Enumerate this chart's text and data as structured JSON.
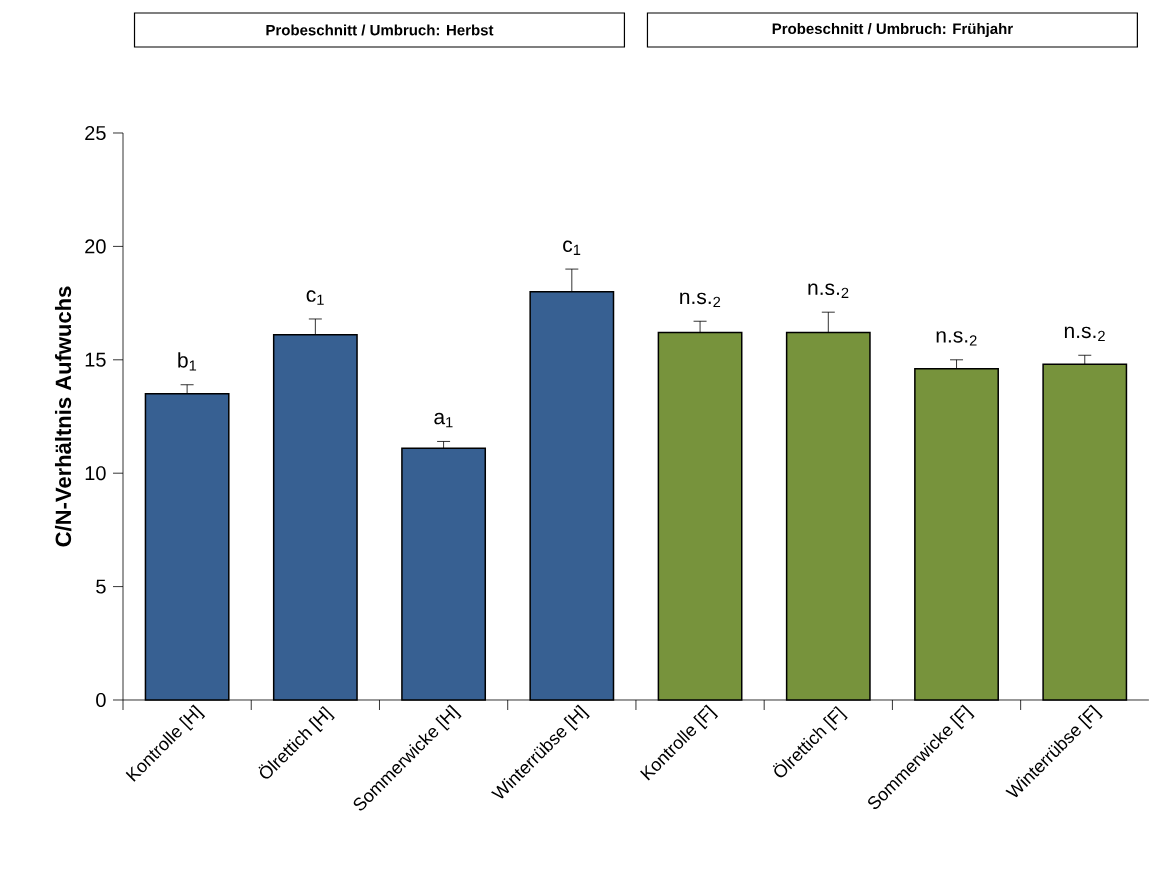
{
  "chart_data": {
    "type": "bar",
    "ylabel": "C/N-Verhältnis Aufwuchs",
    "categories": [
      "Kontrolle [H]",
      "Ölrettich [H]",
      "Sommerwicke [H]",
      "Winterrübse [H]",
      "Kontrolle [F]",
      "Ölrettich [F]",
      "Sommerwicke [F]",
      "Winterrübse [F]"
    ],
    "values": [
      13.5,
      16.1,
      11.1,
      18.0,
      16.2,
      16.2,
      14.6,
      14.8
    ],
    "errors": [
      [
        13.5,
        13.9
      ],
      [
        16.1,
        16.8
      ],
      [
        11.1,
        11.4
      ],
      [
        18.0,
        19.0
      ],
      [
        16.2,
        16.7
      ],
      [
        16.2,
        17.1
      ],
      [
        14.6,
        15.0
      ],
      [
        14.8,
        15.2
      ]
    ],
    "colors": [
      "#376092",
      "#376092",
      "#376092",
      "#376092",
      "#77933c",
      "#77933c",
      "#77933c",
      "#77933c"
    ],
    "ylim": [
      0,
      25
    ],
    "yticks": [
      0,
      5,
      10,
      15,
      20,
      25
    ],
    "annotations": [
      "Probeschnitt / Umbruch: Herbst",
      "Probeschnitt / Umbruch: Frühjahr",
      "b$_{1}$",
      "c$_{1}$",
      "a$_{1}$",
      "c$_{1}$",
      "n.s.$_{2}$",
      "n.s.$_{2}$",
      "n.s.$_{2}$",
      "n.s.$_{2}$"
    ]
  }
}
